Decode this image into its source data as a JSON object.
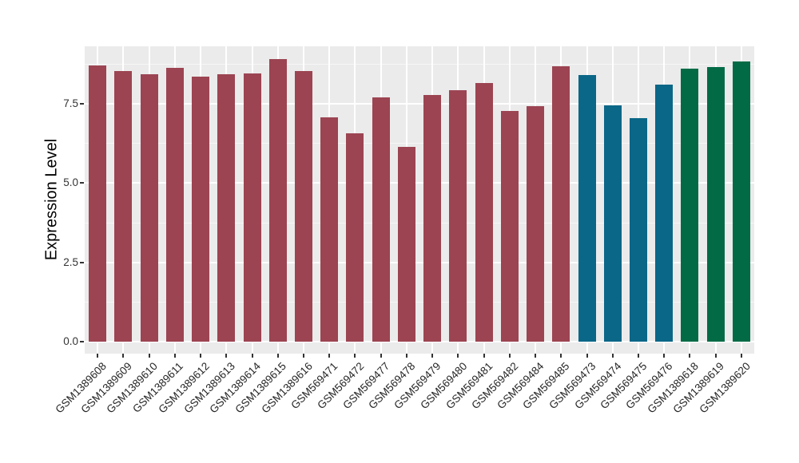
{
  "chart_data": {
    "type": "bar",
    "title": "",
    "xlabel": "",
    "ylabel": "Expression Level",
    "categories": [
      "GSM1389608",
      "GSM1389609",
      "GSM1389610",
      "GSM1389611",
      "GSM1389612",
      "GSM1389613",
      "GSM1389614",
      "GSM1389615",
      "GSM1389616",
      "GSM569471",
      "GSM569472",
      "GSM569477",
      "GSM569478",
      "GSM569479",
      "GSM569480",
      "GSM569481",
      "GSM569482",
      "GSM569484",
      "GSM569485",
      "GSM569473",
      "GSM569474",
      "GSM569475",
      "GSM569476",
      "GSM1389618",
      "GSM1389619",
      "GSM1389620"
    ],
    "values": [
      8.71,
      8.54,
      8.42,
      8.62,
      8.36,
      8.42,
      8.45,
      8.91,
      8.52,
      7.07,
      6.58,
      7.7,
      6.13,
      7.78,
      7.93,
      8.16,
      7.27,
      7.43,
      8.67,
      8.4,
      7.45,
      7.04,
      8.1,
      8.61,
      8.65,
      8.83
    ],
    "bar_groups": [
      "red",
      "red",
      "red",
      "red",
      "red",
      "red",
      "red",
      "red",
      "red",
      "red",
      "red",
      "red",
      "red",
      "red",
      "red",
      "red",
      "red",
      "red",
      "red",
      "blue",
      "blue",
      "blue",
      "blue",
      "green",
      "green",
      "green"
    ],
    "palette": {
      "red": "#9C4452",
      "blue": "#0A6787",
      "green": "#026B46"
    },
    "y_ticks": [
      0,
      2.5,
      5,
      7.5
    ],
    "y_tick_labels": [
      "0.0",
      "2.5",
      "5.0",
      "7.5"
    ],
    "y_minor_ticks": [
      1.25,
      3.75,
      6.25,
      8.75
    ],
    "ylim": [
      -0.37,
      9.31
    ],
    "grid": "on",
    "legend": "none"
  },
  "style": {
    "panel_background": "#EBEBEB",
    "grid_major_color": "#FFFFFF",
    "grid_minor_color": "#F7F7F7",
    "axis_text_color": "#333333",
    "axis_title_color": "#000000",
    "page_background": "#FFFFFF"
  }
}
